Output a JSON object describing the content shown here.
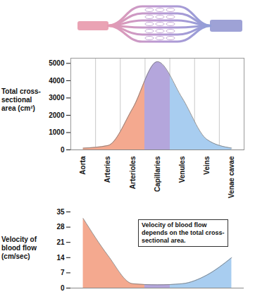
{
  "chart_data": [
    {
      "type": "area",
      "categories": [
        "Aorta",
        "Arteries",
        "Arterioles",
        "Capillaries",
        "Venules",
        "Veins",
        "Venae cavae"
      ],
      "values": [
        100,
        250,
        2400,
        5100,
        3000,
        600,
        100
      ],
      "colors": [
        "#f4a98f",
        "#f4a98f",
        "#f4a98f",
        "#b4a6dc",
        "#a8cdf0",
        "#a8cdf0",
        "#a8cdf0"
      ],
      "ylabel": "Total cross-sectional area (cm²)",
      "ylim": [
        0,
        5300
      ],
      "yticks": [
        0,
        1000,
        2000,
        3000,
        4000,
        5000
      ],
      "grid": true
    },
    {
      "type": "area",
      "categories": [
        "Aorta",
        "Arteries",
        "Arterioles",
        "Capillaries",
        "Venules",
        "Veins",
        "Venae cavae"
      ],
      "values": [
        32,
        15,
        2,
        1.5,
        2,
        6,
        14
      ],
      "colors": [
        "#f4a98f",
        "#f4a98f",
        "#f4a98f",
        "#b4a6dc",
        "#a8cdf0",
        "#a8cdf0",
        "#a8cdf0"
      ],
      "ylabel": "Velocity of blood flow (cm/sec)",
      "ylim": [
        0,
        35
      ],
      "yticks": [
        0,
        7,
        14,
        21,
        28,
        35
      ],
      "tick_labels": "y",
      "annotation": "Velocity of blood flow depends on the total cross-sectional area."
    }
  ]
}
